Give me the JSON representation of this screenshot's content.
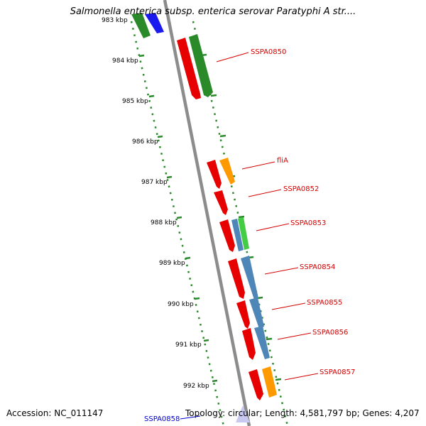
{
  "title": "Salmonella enterica subsp. enterica serovar Paratyphi A str....",
  "accession_label": "Accession: NC_011147",
  "summary_label": "Topology: circular; Length: 4,581,797 bp; Genes: 4,207",
  "scale_labels": [
    "983 kbp",
    "984 kbp",
    "985 kbp",
    "986 kbp",
    "987 kbp",
    "988 kbp",
    "989 kbp",
    "990 kbp",
    "991 kbp",
    "992 kbp"
  ],
  "gene_labels": [
    {
      "text": "SSPA0850",
      "color": "#d40000"
    },
    {
      "text": "fliA",
      "color": "#d40000"
    },
    {
      "text": "SSPA0852",
      "color": "#d40000"
    },
    {
      "text": "SSPA0853",
      "color": "#d40000"
    },
    {
      "text": "SSPA0854",
      "color": "#d40000"
    },
    {
      "text": "SSPA0855",
      "color": "#d40000"
    },
    {
      "text": "SSPA0856",
      "color": "#d40000"
    },
    {
      "text": "SSPA0857",
      "color": "#d40000"
    },
    {
      "text": "SSPA0858",
      "color": "#0000cc"
    }
  ],
  "colors": {
    "backbone": "#8c8c8c",
    "scale": "#2a8a2a",
    "cds": "#e60000",
    "green": "#2a8a2a",
    "lightgreen": "#44cc44",
    "orange": "#ff9900",
    "steelblue": "#4f86b8",
    "blue": "#1a1aee",
    "lavender": "#c8c8f0"
  }
}
